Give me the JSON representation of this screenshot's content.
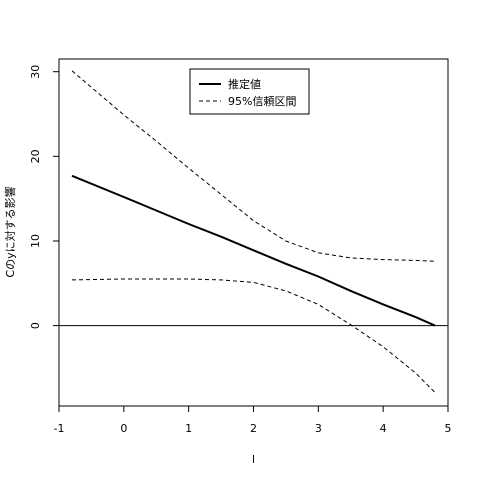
{
  "chart_data": {
    "type": "line",
    "title": "",
    "xlabel": "l",
    "ylabel": "Cのyに対する影響",
    "xlim": [
      -1,
      5
    ],
    "ylim": [
      -9.5,
      31.5
    ],
    "xticks": [
      -1,
      0,
      1,
      2,
      3,
      4,
      5
    ],
    "yticks": [
      0,
      10,
      20,
      30
    ],
    "grid": false,
    "legend_position": "top-center",
    "reference_line": {
      "y": 0
    },
    "series": [
      {
        "name": "推定値",
        "style": "solid-thick",
        "color": "#000000",
        "x": [
          -0.8,
          0.0,
          0.5,
          1.0,
          1.5,
          2.0,
          2.5,
          3.0,
          3.5,
          4.0,
          4.5,
          4.8
        ],
        "y": [
          17.7,
          15.2,
          13.6,
          12.0,
          10.5,
          8.9,
          7.3,
          5.8,
          4.1,
          2.5,
          1.0,
          0.0
        ]
      },
      {
        "name": "95%信頼区間",
        "style": "dashed",
        "color": "#000000",
        "x": [
          -0.8,
          0.0,
          0.5,
          1.0,
          1.5,
          2.0,
          2.5,
          3.0,
          3.5,
          4.0,
          4.5,
          4.8
        ],
        "y": [
          30.1,
          24.9,
          21.8,
          18.6,
          15.5,
          12.4,
          10.0,
          8.6,
          8.0,
          7.8,
          7.7,
          7.6
        ]
      },
      {
        "name": "",
        "style": "dashed",
        "color": "#000000",
        "x": [
          -0.8,
          0.0,
          0.5,
          1.0,
          1.5,
          2.0,
          2.5,
          3.0,
          3.5,
          4.0,
          4.5,
          4.8
        ],
        "y": [
          5.4,
          5.5,
          5.5,
          5.5,
          5.4,
          5.1,
          4.1,
          2.5,
          0.1,
          -2.5,
          -5.6,
          -7.9
        ]
      }
    ]
  }
}
